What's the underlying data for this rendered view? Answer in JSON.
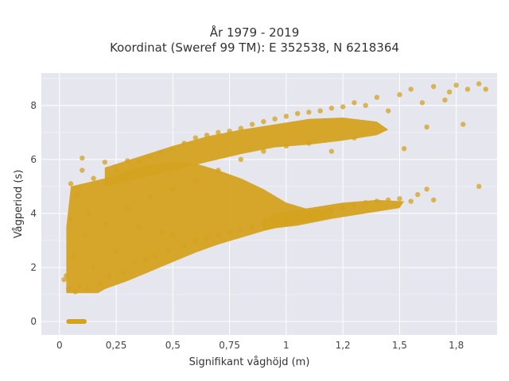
{
  "chart_data": {
    "type": "scatter",
    "title_line1": "År 1979 - 2019",
    "title_line2": "Koordinat (Sweref 99 TM): E 352538, N 6218364",
    "xlabel": "Signifikant våghöjd (m)",
    "ylabel": "Vågperiod (s)",
    "xlim": [
      -0.08,
      1.93
    ],
    "ylim": [
      -0.5,
      9.2
    ],
    "x_ticks": [
      0,
      0.25,
      0.5,
      0.75,
      1,
      1.25,
      1.5,
      1.75
    ],
    "x_tick_labels": [
      "0",
      "0,25",
      "0,5",
      "0,75",
      "1",
      "1,2",
      "1,5",
      "1,8"
    ],
    "y_ticks": [
      0,
      2,
      4,
      6,
      8
    ],
    "y_tick_labels": [
      "0",
      "2",
      "4",
      "6",
      "8"
    ],
    "grid": true,
    "marker_color": "#d4a21f",
    "plot_bg": "#e5e6ee",
    "series": [
      {
        "points": [
          [
            0.02,
            1.55
          ],
          [
            0.03,
            1.7
          ],
          [
            0.04,
            1.2
          ],
          [
            0.05,
            3.8
          ],
          [
            0.05,
            5.1
          ],
          [
            0.06,
            2.4
          ],
          [
            0.07,
            1.1
          ],
          [
            0.08,
            4.7
          ],
          [
            0.09,
            1.3
          ],
          [
            0.1,
            5.6
          ],
          [
            0.1,
            6.05
          ],
          [
            0.11,
            3.2
          ],
          [
            0.12,
            1.2
          ],
          [
            0.13,
            4.0
          ],
          [
            0.15,
            2.0
          ],
          [
            0.15,
            5.3
          ],
          [
            0.18,
            1.4
          ],
          [
            0.2,
            3.6
          ],
          [
            0.2,
            5.9
          ],
          [
            0.22,
            1.7
          ],
          [
            0.25,
            2.6
          ],
          [
            0.25,
            5.6
          ],
          [
            0.28,
            1.8
          ],
          [
            0.3,
            4.2
          ],
          [
            0.3,
            5.95
          ],
          [
            0.33,
            2.2
          ],
          [
            0.35,
            3.5
          ],
          [
            0.35,
            5.9
          ],
          [
            0.38,
            2.3
          ],
          [
            0.4,
            4.6
          ],
          [
            0.4,
            6.1
          ],
          [
            0.42,
            2.4
          ],
          [
            0.45,
            3.3
          ],
          [
            0.45,
            6.25
          ],
          [
            0.48,
            2.6
          ],
          [
            0.5,
            3.2
          ],
          [
            0.5,
            4.9
          ],
          [
            0.5,
            6.4
          ],
          [
            0.55,
            2.8
          ],
          [
            0.55,
            6.6
          ],
          [
            0.6,
            3.0
          ],
          [
            0.6,
            5.2
          ],
          [
            0.6,
            6.8
          ],
          [
            0.65,
            3.1
          ],
          [
            0.65,
            6.9
          ],
          [
            0.7,
            3.2
          ],
          [
            0.7,
            5.6
          ],
          [
            0.7,
            7.0
          ],
          [
            0.75,
            3.3
          ],
          [
            0.75,
            7.05
          ],
          [
            0.8,
            3.4
          ],
          [
            0.8,
            6.0
          ],
          [
            0.8,
            7.15
          ],
          [
            0.85,
            3.5
          ],
          [
            0.85,
            7.3
          ],
          [
            0.9,
            3.6
          ],
          [
            0.9,
            6.3
          ],
          [
            0.9,
            7.4
          ],
          [
            0.95,
            3.7
          ],
          [
            0.95,
            7.5
          ],
          [
            1.0,
            3.8
          ],
          [
            1.0,
            6.5
          ],
          [
            1.0,
            7.6
          ],
          [
            1.05,
            3.9
          ],
          [
            1.05,
            7.7
          ],
          [
            1.1,
            3.95
          ],
          [
            1.1,
            6.6
          ],
          [
            1.1,
            7.75
          ],
          [
            1.15,
            4.0
          ],
          [
            1.15,
            7.8
          ],
          [
            1.2,
            4.1
          ],
          [
            1.2,
            6.3
          ],
          [
            1.2,
            7.9
          ],
          [
            1.25,
            4.2
          ],
          [
            1.25,
            7.95
          ],
          [
            1.3,
            4.3
          ],
          [
            1.3,
            6.8
          ],
          [
            1.3,
            8.1
          ],
          [
            1.35,
            4.4
          ],
          [
            1.35,
            8.0
          ],
          [
            1.4,
            4.45
          ],
          [
            1.4,
            8.3
          ],
          [
            1.45,
            4.5
          ],
          [
            1.45,
            7.8
          ],
          [
            1.5,
            4.55
          ],
          [
            1.5,
            8.4
          ],
          [
            1.52,
            6.4
          ],
          [
            1.55,
            4.45
          ],
          [
            1.55,
            8.6
          ],
          [
            1.58,
            4.7
          ],
          [
            1.6,
            8.1
          ],
          [
            1.62,
            4.9
          ],
          [
            1.62,
            7.2
          ],
          [
            1.65,
            4.5
          ],
          [
            1.65,
            8.7
          ],
          [
            1.7,
            8.2
          ],
          [
            1.72,
            8.5
          ],
          [
            1.75,
            8.75
          ],
          [
            1.78,
            7.3
          ],
          [
            1.8,
            8.6
          ],
          [
            1.85,
            5.0
          ],
          [
            1.85,
            8.8
          ],
          [
            1.88,
            8.6
          ]
        ]
      }
    ]
  }
}
